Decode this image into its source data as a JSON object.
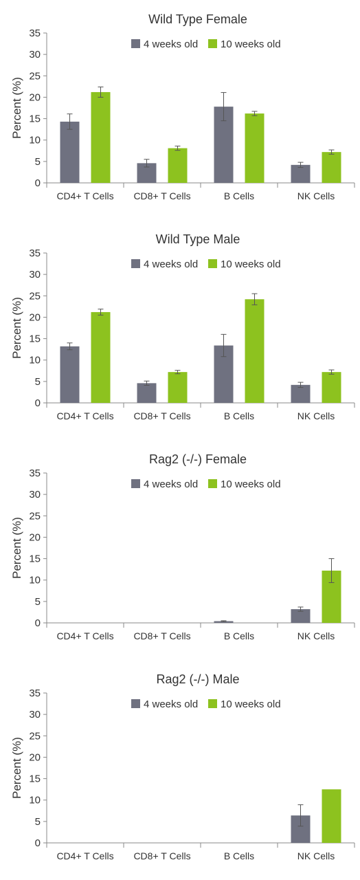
{
  "colors": {
    "series_4wk": "#6f7180",
    "series_10wk": "#8dc21f",
    "axis": "#8a8a8a",
    "text": "#333333",
    "errorbar": "#555555"
  },
  "chart_data": [
    {
      "type": "bar",
      "title": "Wild Type Female",
      "ylabel": "Percent (%)",
      "xlabel": "",
      "ylim": [
        0,
        35
      ],
      "yticks": [
        0,
        5,
        10,
        15,
        20,
        25,
        30,
        35
      ],
      "grid": false,
      "legend_position": "top",
      "categories": [
        "CD4+ T Cells",
        "CD8+ T Cells",
        "B Cells",
        "NK Cells"
      ],
      "series": [
        {
          "name": "4 weeks old",
          "values": [
            14.3,
            4.6,
            17.8,
            4.2
          ],
          "errors": [
            1.8,
            0.9,
            3.3,
            0.6
          ]
        },
        {
          "name": "10 weeks old",
          "values": [
            21.2,
            8.1,
            16.2,
            7.2
          ],
          "errors": [
            1.2,
            0.5,
            0.5,
            0.5
          ]
        }
      ]
    },
    {
      "type": "bar",
      "title": "Wild Type Male",
      "ylabel": "Percent (%)",
      "xlabel": "",
      "ylim": [
        0,
        35
      ],
      "yticks": [
        0,
        5,
        10,
        15,
        20,
        25,
        30,
        35
      ],
      "grid": false,
      "legend_position": "top",
      "categories": [
        "CD4+ T Cells",
        "CD8+ T Cells",
        "B Cells",
        "NK Cells"
      ],
      "series": [
        {
          "name": "4 weeks old",
          "values": [
            13.2,
            4.6,
            13.4,
            4.2
          ],
          "errors": [
            0.8,
            0.5,
            2.6,
            0.6
          ]
        },
        {
          "name": "10 weeks old",
          "values": [
            21.2,
            7.2,
            24.2,
            7.2
          ],
          "errors": [
            0.7,
            0.4,
            1.3,
            0.5
          ]
        }
      ]
    },
    {
      "type": "bar",
      "title": "Rag2 (-/-) Female",
      "ylabel": "Percent (%)",
      "xlabel": "",
      "ylim": [
        0,
        35
      ],
      "yticks": [
        0,
        5,
        10,
        15,
        20,
        25,
        30,
        35
      ],
      "grid": false,
      "legend_position": "top",
      "categories": [
        "CD4+ T Cells",
        "CD8+ T Cells",
        "B Cells",
        "NK Cells"
      ],
      "series": [
        {
          "name": "4 weeks old",
          "values": [
            0,
            0,
            0.4,
            3.2
          ],
          "errors": [
            0,
            0,
            0.1,
            0.5
          ]
        },
        {
          "name": "10 weeks old",
          "values": [
            0,
            0,
            0,
            12.2
          ],
          "errors": [
            0,
            0,
            0,
            2.8
          ]
        }
      ]
    },
    {
      "type": "bar",
      "title": "Rag2 (-/-) Male",
      "ylabel": "Percent (%)",
      "xlabel": "",
      "ylim": [
        0,
        35
      ],
      "yticks": [
        0,
        5,
        10,
        15,
        20,
        25,
        30,
        35
      ],
      "grid": false,
      "legend_position": "top",
      "categories": [
        "CD4+ T Cells",
        "CD8+ T Cells",
        "B Cells",
        "NK Cells"
      ],
      "series": [
        {
          "name": "4 weeks old",
          "values": [
            0,
            0,
            0,
            6.4
          ],
          "errors": [
            0,
            0,
            0,
            2.5
          ]
        },
        {
          "name": "10 weeks old",
          "values": [
            0,
            0,
            0,
            12.5
          ],
          "errors": [
            0,
            0,
            0,
            0
          ]
        }
      ]
    }
  ]
}
